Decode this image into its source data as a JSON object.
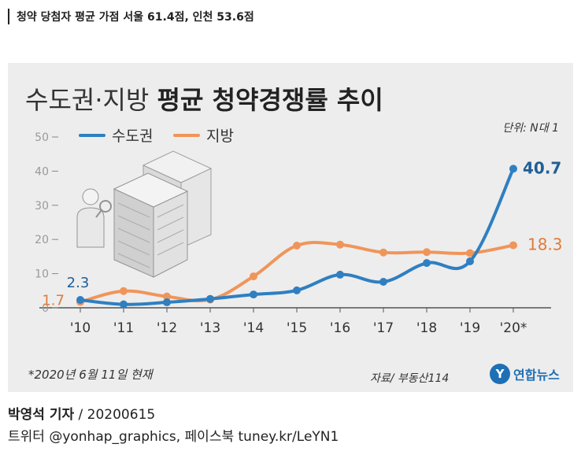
{
  "headline": "청약 당첨자 평균 가점 서울 61.4점, 인천 53.6점",
  "colors": {
    "metro": "#2f7fc1",
    "regional": "#f0955a",
    "panel": "#ededed",
    "brand": "#1f6fb5"
  },
  "chart_data": {
    "type": "line",
    "title_light": "수도권·지방",
    "title_bold": "평균 청약경쟁률 추이",
    "unit": "단위: N대 1",
    "categories": [
      "'10",
      "'11",
      "'12",
      "'13",
      "'14",
      "'15",
      "'16",
      "'17",
      "'18",
      "'19",
      "'20*"
    ],
    "yticks": [
      "0",
      "10",
      "20",
      "30",
      "40",
      "50"
    ],
    "ylim": [
      0,
      50
    ],
    "grid": false,
    "legend_position": "top-left",
    "series": [
      {
        "name": "수도권",
        "color": "#2f7fc1",
        "values": [
          2.3,
          1.0,
          1.6,
          2.6,
          3.9,
          5.1,
          9.7,
          7.6,
          13.1,
          13.6,
          40.7
        ],
        "labels": {
          "start": "2.3",
          "end": "40.7"
        }
      },
      {
        "name": "지방",
        "color": "#f0955a",
        "values": [
          1.7,
          4.9,
          3.3,
          2.4,
          9.2,
          18.2,
          18.5,
          16.2,
          16.3,
          16.0,
          18.3
        ],
        "labels": {
          "start": "1.7",
          "end": "18.3"
        }
      }
    ],
    "footnote": "*2020년 6월 11일 현재",
    "source": "자료/ 부동산114"
  },
  "logo": {
    "mark": "Y",
    "name": "연합뉴스"
  },
  "credit": {
    "author": "박영석 기자",
    "sep": " / ",
    "date": "20200615",
    "social": "트위터 @yonhap_graphics, 페이스북 tuney.kr/LeYN1"
  }
}
